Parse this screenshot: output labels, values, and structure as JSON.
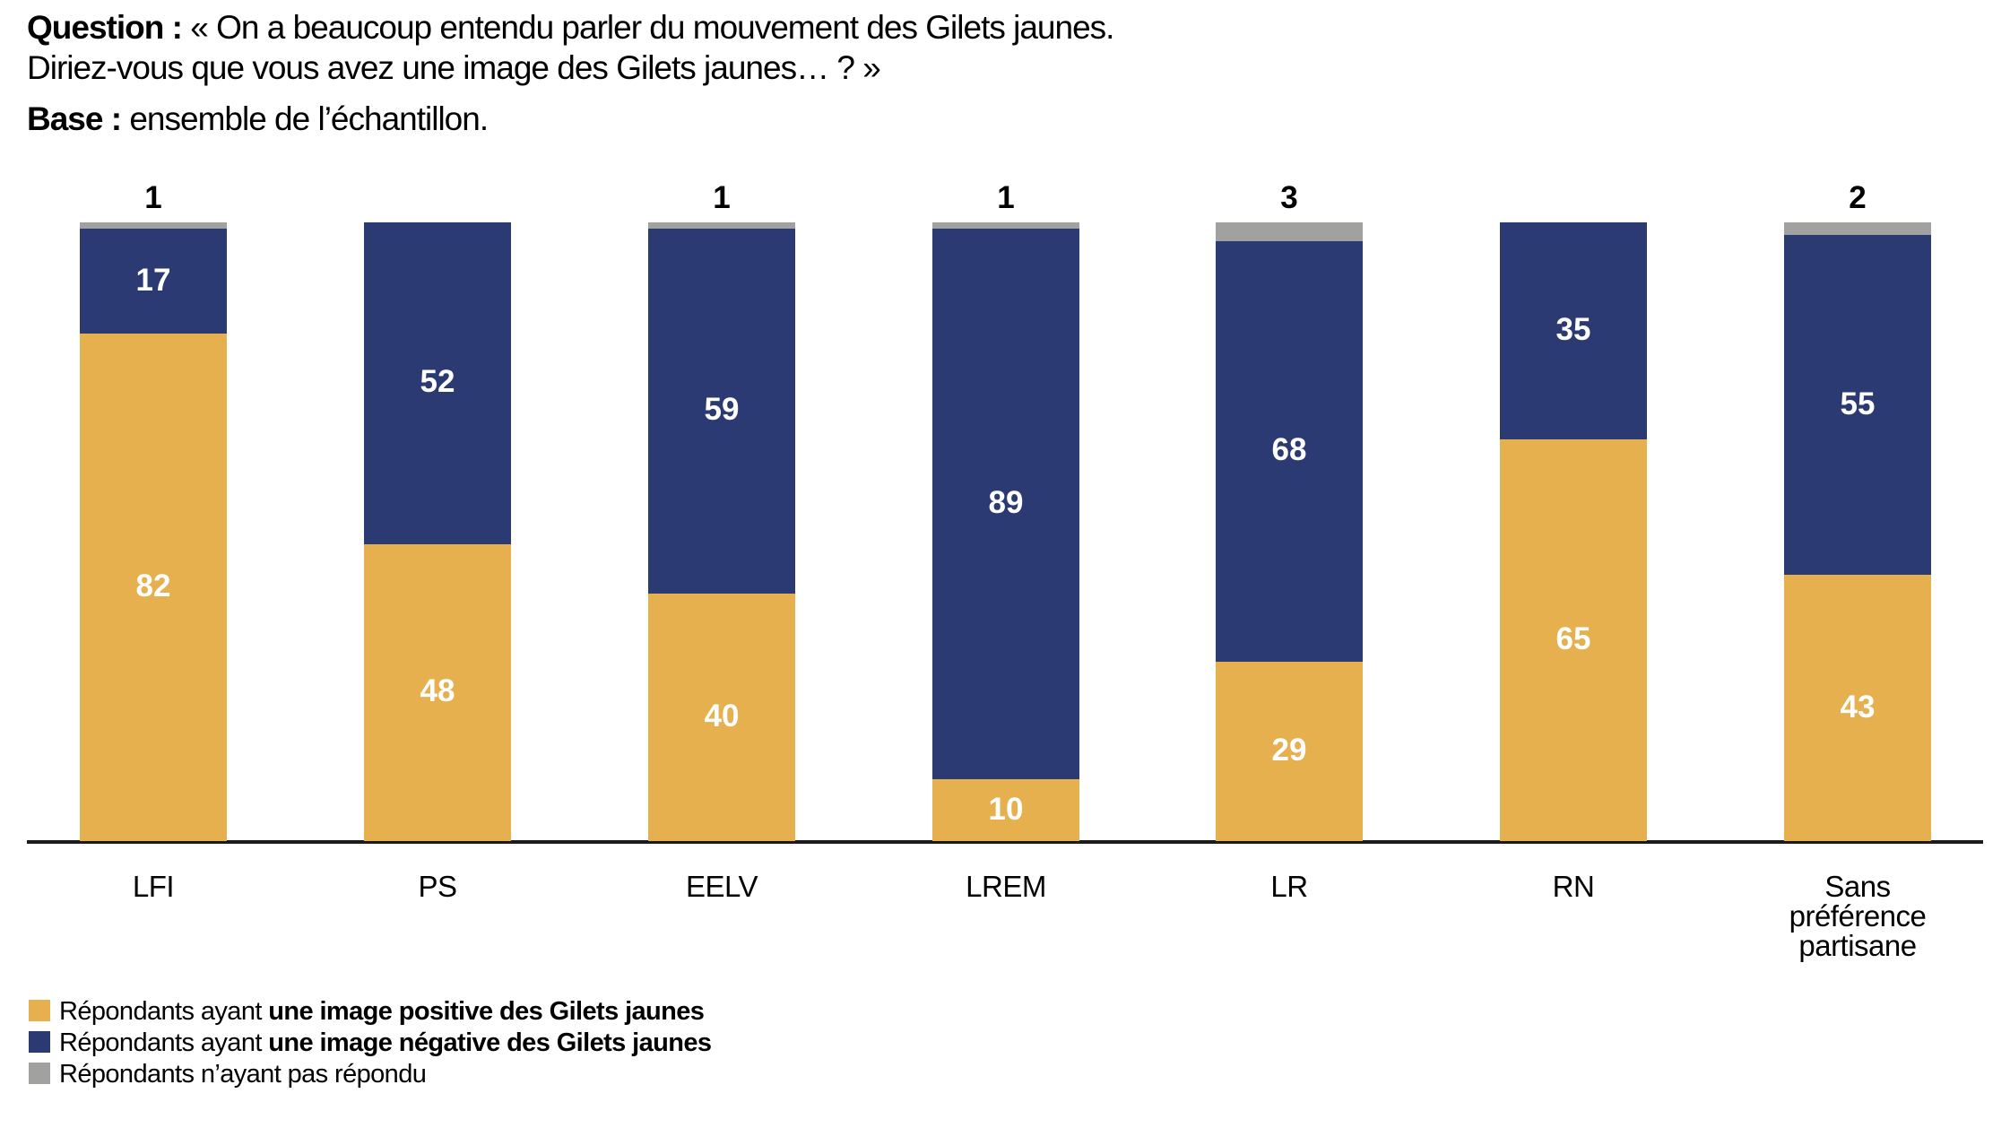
{
  "header": {
    "question_label": "Question :",
    "question_line1": " « On a beaucoup entendu parler du mouvement des Gilets jaunes.",
    "question_line2": "Diriez-vous que vous avez une image des Gilets jaunes… ? »",
    "base_label": "Base :",
    "base_text": " ensemble de l’échantillon."
  },
  "chart_data": {
    "type": "bar",
    "stacked": true,
    "unit": "percent",
    "title": "Question : « On a beaucoup entendu parler du mouvement des Gilets jaunes. Diriez-vous que vous avez une image des Gilets jaunes… ? »",
    "base": "Base : ensemble de l’échantillon.",
    "categories": [
      "LFI",
      "PS",
      "EELV",
      "LREM",
      "LR",
      "RN",
      "Sans préférence partisane"
    ],
    "series": [
      {
        "key": "positive",
        "name": "Répondants ayant une image positive des Gilets jaunes",
        "color": "#E6B04E",
        "label_placement": "inside",
        "values": [
          82,
          48,
          40,
          10,
          29,
          65,
          43
        ]
      },
      {
        "key": "negative",
        "name": "Répondants ayant une image négative des Gilets jaunes",
        "color": "#2B3A72",
        "label_placement": "inside",
        "values": [
          17,
          52,
          59,
          89,
          68,
          35,
          55
        ]
      },
      {
        "key": "nonresponse",
        "name": "Répondants n’ayant pas répondu",
        "color": "#A1A19F",
        "label_placement": "above",
        "values": [
          1,
          0,
          1,
          1,
          3,
          0,
          2
        ]
      }
    ],
    "ylim": [
      0,
      100
    ],
    "axis_line_color": "#1B1B1B",
    "grid": false,
    "legend_position": "bottom-left"
  },
  "legend": {
    "items": [
      {
        "color": "#E6B04E",
        "prefix": "Répondants ayant ",
        "bold": "une image positive des Gilets jaunes"
      },
      {
        "color": "#2B3A72",
        "prefix": "Répondants ayant ",
        "bold": "une image négative des Gilets jaunes"
      },
      {
        "color": "#A1A19F",
        "prefix": "Répondants n’ayant pas répondu",
        "bold": ""
      }
    ]
  }
}
